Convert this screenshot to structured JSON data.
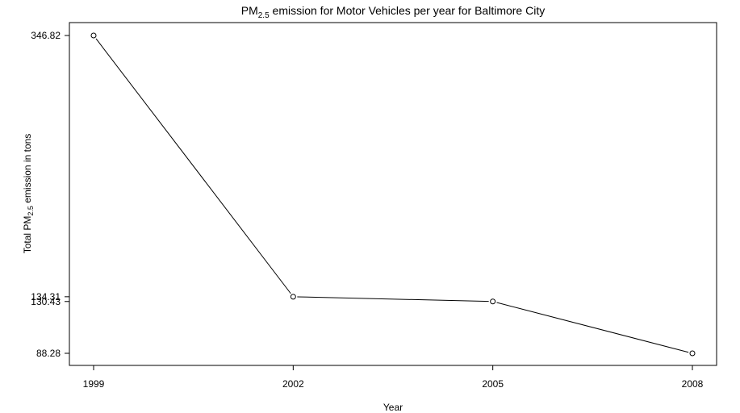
{
  "chart_data": {
    "type": "line",
    "title": {
      "prefix": "PM",
      "subscript": "2.5",
      "suffix": " emission for Motor Vehicles per year for Baltimore City"
    },
    "xlabel": "Year",
    "ylabel": {
      "prefix": "Total PM",
      "subscript": "2.5",
      "suffix": " emission in tons"
    },
    "x": [
      "1999",
      "2002",
      "2005",
      "2008"
    ],
    "x_tick_labels": [
      "1999",
      "2002",
      "2005",
      "2008"
    ],
    "series": [
      {
        "values": [
          346.82,
          134.31,
          130.43,
          88.28
        ]
      }
    ],
    "y_tick_labels": [
      "88.28",
      "130.43",
      "134.31",
      "346.82"
    ],
    "y_ticks": [
      88.28,
      130.43,
      134.31,
      346.82
    ],
    "ylim": [
      78.0,
      357.0
    ],
    "grid": false,
    "marker": "open-circle",
    "line_color": "#000000"
  }
}
